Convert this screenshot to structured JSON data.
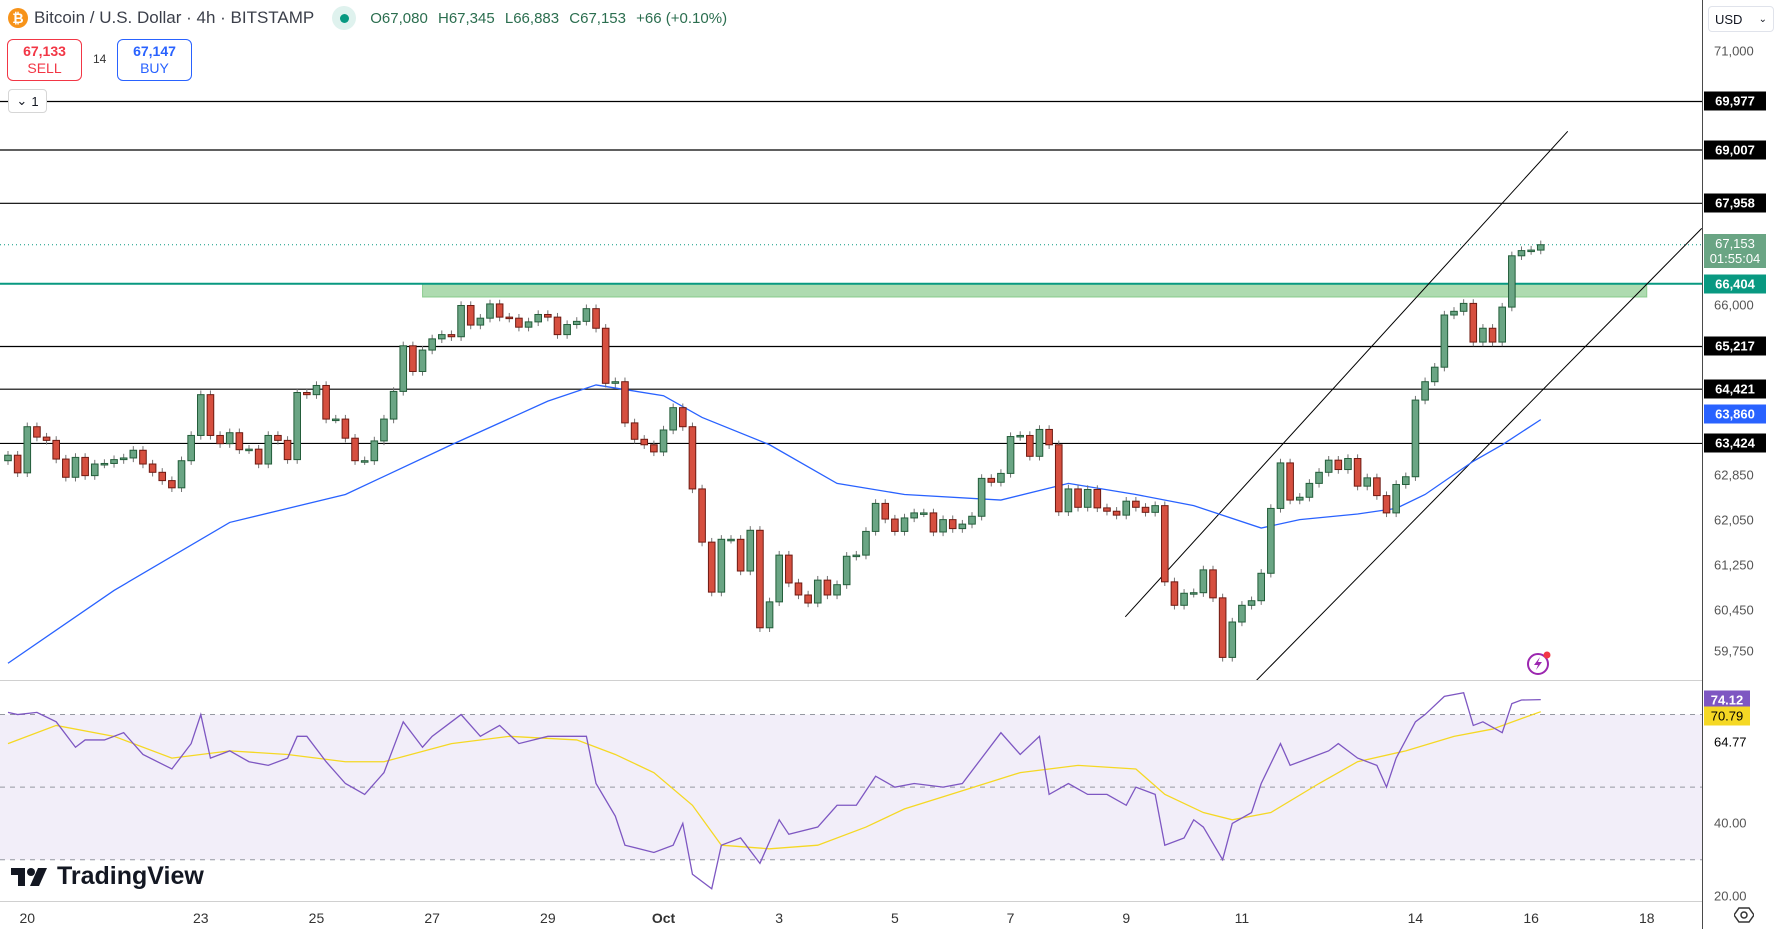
{
  "header": {
    "symbol_icon": "bitcoin-icon",
    "title": "Bitcoin / U.S. Dollar · 4h · BITSTAMP",
    "open": "O67,080",
    "high": "H67,345",
    "low": "L66,883",
    "close": "C67,153",
    "change": "+66 (+0.10%)"
  },
  "trade": {
    "sell_price": "67,133",
    "sell_label": "SELL",
    "spread": "14",
    "buy_price": "67,147",
    "buy_label": "BUY"
  },
  "indicator_toggle": {
    "label": "1",
    "icon": "chevron-down-icon"
  },
  "currency": {
    "value": "USD"
  },
  "logo": {
    "text": "TradingView"
  },
  "colors": {
    "up": "#6aa584",
    "down": "#d64f3f",
    "ma": "#2962ff",
    "rsi": "#7e57c2",
    "rsi_ma": "#f5d824",
    "zone": "#4caf50",
    "level": "#000000",
    "support": "#089981"
  },
  "chart_data": [
    {
      "type": "candlestick",
      "title": "",
      "scale": "log",
      "ylim": [
        59000,
        71500
      ],
      "first_open": 63110,
      "close": [
        63210,
        62890,
        63730,
        63540,
        63480,
        63140,
        62810,
        63170,
        62840,
        63050,
        63060,
        63130,
        63160,
        63300,
        63050,
        62900,
        62750,
        62620,
        63110,
        63570,
        64320,
        63570,
        63420,
        63620,
        63310,
        63320,
        63050,
        63570,
        63480,
        63130,
        64360,
        64320,
        64490,
        63870,
        63870,
        63520,
        63110,
        63110,
        63470,
        63870,
        64380,
        65230,
        64750,
        65150,
        65360,
        65440,
        65400,
        65990,
        65620,
        65750,
        66020,
        65770,
        65750,
        65580,
        65680,
        65820,
        65770,
        65440,
        65630,
        65690,
        65930,
        65560,
        64530,
        64560,
        63800,
        63500,
        63400,
        63270,
        63670,
        64080,
        63730,
        62600,
        61650,
        60770,
        61700,
        61700,
        61140,
        61860,
        60150,
        60600,
        61420,
        60930,
        60720,
        60580,
        60980,
        60720,
        60900,
        61400,
        61420,
        61840,
        62340,
        62060,
        61840,
        62080,
        62170,
        62170,
        61830,
        62050,
        61890,
        61970,
        62110,
        62790,
        62720,
        62880,
        63550,
        63570,
        63190,
        63680,
        63400,
        62190,
        62600,
        62270,
        62590,
        62260,
        62200,
        62130,
        62380,
        62270,
        62180,
        62300,
        60950,
        60540,
        60750,
        60760,
        61160,
        60670,
        59640,
        60250,
        60540,
        60620,
        61100,
        62250,
        63070,
        62400,
        62450,
        62700,
        62900,
        63120,
        62950,
        63150,
        62650,
        62800,
        62480,
        62170,
        62680,
        62820,
        64220,
        64560,
        64830,
        65810,
        65880,
        66030,
        65300,
        65560,
        65300,
        65960,
        66940,
        67040,
        67050,
        67153
      ],
      "moving_average": {
        "bars": [
          0,
          11,
          23,
          35,
          46,
          56,
          61,
          68,
          72,
          79,
          86,
          93,
          103,
          110,
          117,
          123,
          130,
          134,
          140,
          144,
          147,
          152,
          155,
          159
        ],
        "values": [
          59540,
          60800,
          62000,
          62500,
          63400,
          64200,
          64500,
          64300,
          63900,
          63400,
          62700,
          62500,
          62400,
          62700,
          62500,
          62300,
          61900,
          62050,
          62150,
          62250,
          62500,
          63100,
          63400,
          63860
        ]
      },
      "last_price": 67153,
      "countdown": "01:55:04",
      "ma_last": 63860,
      "levels": [
        69977,
        69007,
        67958,
        65217,
        64421,
        63424
      ],
      "support_level": 66404,
      "zone": {
        "from_bar": 43,
        "to_bar": 170,
        "top": 66404,
        "bottom": 66150
      },
      "trend_lines": [
        {
          "bar1": 115.9,
          "price1": 60340,
          "bar2": 161.8,
          "price2": 69380
        },
        {
          "bar1": 128.5,
          "price1": 59080,
          "bar2": 175.7,
          "price2": 67470
        }
      ],
      "y_ticks": [
        71000,
        66000,
        62850,
        62050,
        61250,
        60450,
        59750
      ],
      "x_ticks": [
        {
          "bar": 2,
          "label": "20"
        },
        {
          "bar": 20,
          "label": "23"
        },
        {
          "bar": 32,
          "label": "25"
        },
        {
          "bar": 44,
          "label": "27"
        },
        {
          "bar": 56,
          "label": "29"
        },
        {
          "bar": 68,
          "label": "Oct"
        },
        {
          "bar": 80,
          "label": "3"
        },
        {
          "bar": 92,
          "label": "5"
        },
        {
          "bar": 104,
          "label": "7"
        },
        {
          "bar": 116,
          "label": "9"
        },
        {
          "bar": 128,
          "label": "11"
        },
        {
          "bar": 146,
          "label": "14"
        },
        {
          "bar": 158,
          "label": "16"
        },
        {
          "bar": 170,
          "label": "18"
        }
      ]
    },
    {
      "type": "line",
      "title": "",
      "ylim": [
        20,
        80
      ],
      "bands": {
        "upper": 70,
        "middle": 50,
        "lower": 30
      },
      "rsi": {
        "bars": [
          0,
          1,
          3,
          5,
          7,
          8,
          10,
          12,
          14,
          17,
          19,
          20,
          21,
          23,
          25,
          27,
          29,
          30,
          31,
          33,
          35,
          37,
          39,
          41,
          43,
          44,
          47,
          49,
          51,
          53,
          56,
          58,
          60,
          61,
          63,
          64,
          67,
          69,
          70,
          71,
          73,
          74,
          76,
          78,
          80,
          81,
          84,
          86,
          88,
          90,
          92,
          94,
          97,
          99,
          101,
          103,
          105,
          107,
          108,
          110,
          112,
          114,
          116,
          117,
          119,
          120,
          122,
          123,
          124,
          126,
          127,
          129,
          130,
          132,
          133,
          135,
          137,
          138,
          140,
          142,
          143,
          144,
          146,
          147,
          149,
          151,
          152,
          153,
          155,
          156,
          157,
          159
        ],
        "values": [
          70.6,
          70,
          70.6,
          68,
          61,
          63,
          63,
          65,
          59,
          55,
          62,
          70,
          58,
          60,
          57,
          56,
          58,
          64,
          64,
          57,
          51,
          48,
          54,
          68,
          61,
          64,
          70,
          64,
          67,
          62,
          64,
          64,
          64,
          51,
          42,
          34,
          32,
          34,
          40,
          26,
          22,
          34,
          36,
          29,
          41,
          37,
          39,
          45,
          45,
          53,
          50,
          51,
          50,
          51,
          58,
          65,
          59,
          64,
          48,
          51,
          48,
          48,
          45,
          50,
          48,
          34,
          36,
          41,
          39,
          30,
          40,
          43,
          51,
          62,
          56,
          58,
          60,
          62,
          58,
          56,
          50,
          58,
          68,
          70,
          75,
          76,
          67,
          68,
          65,
          73,
          74,
          74.12
        ]
      },
      "rsi_ma": {
        "bars": [
          0,
          5,
          11,
          17,
          23,
          29,
          35,
          39,
          46,
          52,
          59,
          63,
          67,
          71,
          74,
          79,
          84,
          89,
          93,
          99,
          105,
          111,
          117,
          120,
          124,
          127,
          131,
          136,
          140,
          145,
          150,
          154,
          159
        ],
        "values": [
          62,
          67,
          64,
          58,
          60,
          59,
          57,
          57,
          62,
          64,
          63,
          59,
          54,
          45,
          34,
          33,
          34,
          39,
          44,
          49,
          54,
          56,
          55,
          48,
          43,
          41,
          43,
          51,
          57,
          60,
          64,
          66,
          70.79
        ]
      },
      "y_ticks": [
        "40.00",
        "20.00"
      ],
      "labels": {
        "rsi": "74.12",
        "rsi_ma": "70.79",
        "other": "64.77"
      }
    }
  ],
  "icons": {
    "alert": "lightning-alert-icon",
    "settings": "settings-icon"
  }
}
